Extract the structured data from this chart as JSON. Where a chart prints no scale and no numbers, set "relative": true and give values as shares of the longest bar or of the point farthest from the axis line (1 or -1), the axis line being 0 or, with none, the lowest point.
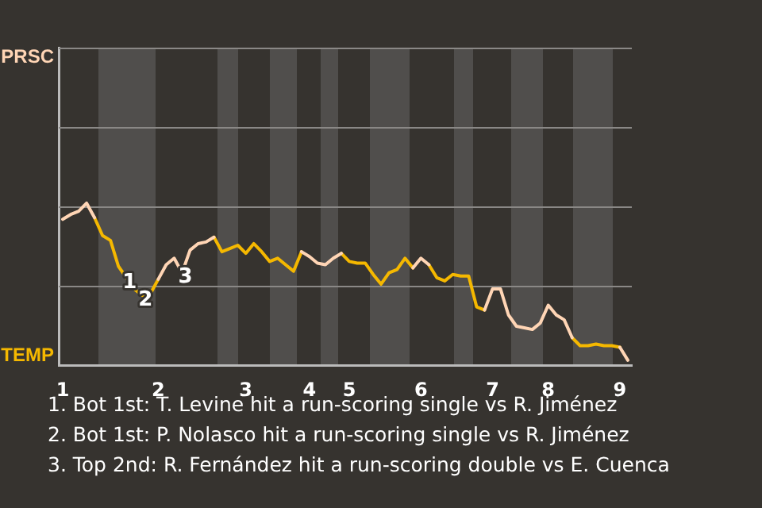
{
  "chart_data": {
    "type": "line",
    "relative": true,
    "ref_lines": [
      {
        "axis": "y",
        "value": 0.49,
        "color": "#8a8886"
      },
      {
        "axis": "y",
        "value": 0.98,
        "color": "#8a8886"
      },
      {
        "axis": "y",
        "value": 1.47,
        "color": "#8a8886"
      },
      {
        "axis": "y",
        "value": 1.96,
        "color": "#8a8886"
      }
    ],
    "categories": [
      "1",
      null,
      null,
      null,
      null,
      null,
      null,
      null,
      null,
      null,
      null,
      null,
      "2",
      null,
      null,
      null,
      null,
      null,
      null,
      null,
      null,
      null,
      null,
      "3",
      null,
      null,
      null,
      null,
      null,
      null,
      null,
      "4",
      null,
      null,
      null,
      null,
      "5",
      null,
      null,
      null,
      null,
      null,
      null,
      null,
      null,
      "6",
      null,
      null,
      null,
      null,
      null,
      null,
      null,
      null,
      "7",
      null,
      null,
      null,
      null,
      null,
      null,
      "8",
      null,
      null,
      null,
      null,
      null,
      null,
      null,
      null,
      "9",
      null
    ],
    "series": [
      {
        "color": "#ffd5b5",
        "values": [
          0.9,
          0.93,
          0.95,
          1,
          0.91,
          null,
          null,
          null,
          null,
          null,
          null,
          null,
          0.53,
          0.62,
          0.66,
          0.57,
          0.71,
          0.75,
          0.76,
          0.79,
          null,
          null,
          null,
          null,
          null,
          null,
          null,
          null,
          null,
          null,
          0.7,
          0.67,
          0.63,
          0.62,
          0.66,
          0.69,
          null,
          null,
          null,
          null,
          null,
          null,
          null,
          null,
          0.6,
          0.66,
          0.62,
          null,
          null,
          null,
          null,
          null,
          null,
          0.34,
          0.47,
          0.47,
          0.31,
          0.24,
          0.23,
          0.22,
          0.26,
          0.37,
          0.31,
          0.28,
          0.17,
          null,
          null,
          null,
          null,
          null,
          0.11,
          0.03
        ]
      },
      {
        "color": "#f5b800",
        "values": [
          null,
          null,
          null,
          null,
          0.91,
          0.8,
          0.77,
          0.61,
          0.54,
          0.47,
          0.43,
          0.44,
          0.53,
          null,
          null,
          null,
          null,
          null,
          null,
          0.79,
          0.7,
          0.72,
          0.74,
          0.69,
          0.75,
          0.7,
          0.64,
          0.66,
          0.62,
          0.58,
          0.7,
          null,
          null,
          null,
          null,
          0.69,
          0.64,
          0.63,
          0.63,
          0.56,
          0.5,
          0.57,
          0.59,
          0.66,
          0.6,
          null,
          0.62,
          0.54,
          0.52,
          0.56,
          0.55,
          0.55,
          0.36,
          0.34,
          null,
          null,
          null,
          null,
          null,
          null,
          null,
          null,
          null,
          null,
          0.17,
          0.12,
          0.12,
          0.13,
          0.12,
          0.12,
          0.11,
          null
        ]
      }
    ],
    "annotations": [
      {
        "text": "PRSC"
      },
      {
        "text": "TEMP"
      },
      {
        "text": "1",
        "y": 0.54
      },
      {
        "text": "2",
        "y": 0.43
      },
      {
        "text": "3",
        "y": 0.57
      },
      "1. Bot 1st: T. Levine hit a run-scoring single vs R. Jiménez",
      "2. Bot 1st: P. Nolasco hit a run-scoring single vs R. Jiménez",
      "3. Top 2nd: R. Fernández hit a run-scoring double vs E. Cuenca"
    ]
  }
}
